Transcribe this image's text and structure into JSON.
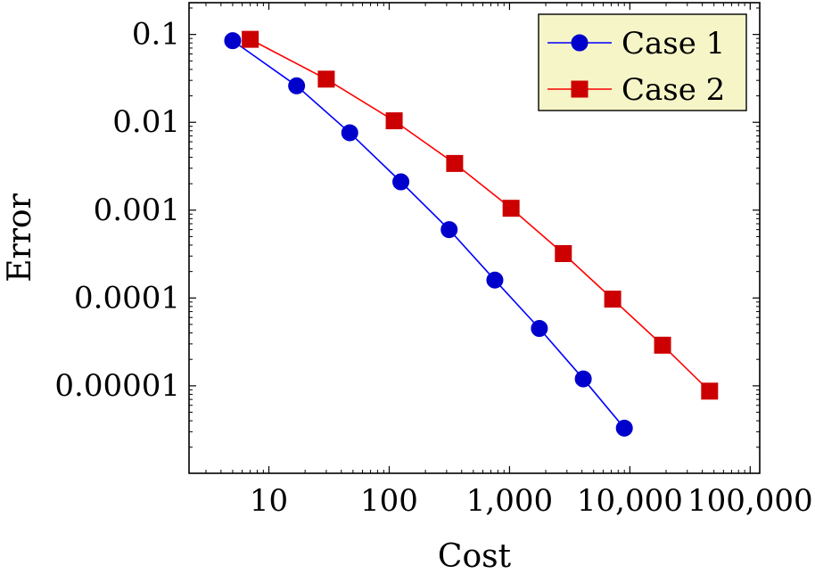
{
  "chart_data": {
    "type": "line",
    "title": "",
    "xlabel": "Cost",
    "ylabel": "Error",
    "xscale": "log",
    "yscale": "log",
    "xlim": [
      2.17,
      120000
    ],
    "ylim": [
      1.01e-06,
      0.23
    ],
    "grid": false,
    "legend_position": "top-right",
    "xticks": [
      10,
      100,
      1000,
      10000,
      100000
    ],
    "xtick_labels": [
      "10",
      "100",
      "1,000",
      "10,000",
      "100,000"
    ],
    "yticks": [
      1e-05,
      0.0001,
      0.001,
      0.01,
      0.1
    ],
    "ytick_labels": [
      "0.00001",
      "0.0001",
      "0.001",
      "0.01",
      "0.1"
    ],
    "legend_bg": "#f5f5c8",
    "series": [
      {
        "name": "Case 1",
        "color": "#0000cc",
        "stroke": "#0000ff",
        "marker": "circle",
        "x": [
          5,
          17,
          47,
          125,
          315,
          755,
          1770,
          4100,
          9000
        ],
        "y": [
          0.085,
          0.026,
          0.0076,
          0.0021,
          0.0006,
          0.00016,
          4.5e-05,
          1.2e-05,
          3.3e-06
        ]
      },
      {
        "name": "Case 2",
        "color": "#cc0000",
        "stroke": "#ff0000",
        "marker": "square",
        "x": [
          7,
          30,
          110,
          350,
          1030,
          2800,
          7200,
          18700,
          46000
        ],
        "y": [
          0.088,
          0.031,
          0.0104,
          0.0034,
          0.00105,
          0.00032,
          9.7e-05,
          2.9e-05,
          8.7e-06
        ]
      }
    ]
  }
}
